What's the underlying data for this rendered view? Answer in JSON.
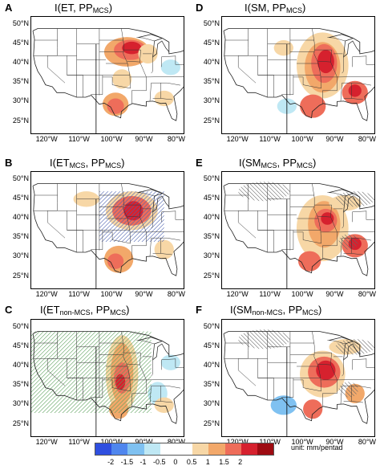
{
  "panels": [
    {
      "letter": "A",
      "title_main": "I(ET, PP",
      "title_sub": "MCS",
      "title_end": ")"
    },
    {
      "letter": "D",
      "title_main": "I(SM, PP",
      "title_sub": "MCS",
      "title_end": ")"
    },
    {
      "letter": "B",
      "title_main": "I(ET",
      "title_sub": "MCS",
      "title_mid": ", PP",
      "title_sub2": "MCS",
      "title_end": ")"
    },
    {
      "letter": "E",
      "title_main": "I(SM",
      "title_sub": "MCS",
      "title_mid": ", PP",
      "title_sub2": "MCS",
      "title_end": ")"
    },
    {
      "letter": "C",
      "title_main": "I(ET",
      "title_sub": "non-MCS",
      "title_mid": ", PP",
      "title_sub2": "MCS",
      "title_end": ")"
    },
    {
      "letter": "F",
      "title_main": "I(SM",
      "title_sub": "non-MCS",
      "title_mid": ", PP",
      "title_sub2": "MCS",
      "title_end": ")"
    }
  ],
  "lat_labels": [
    "50°N",
    "45°N",
    "40°N",
    "35°N",
    "30°N",
    "25°N"
  ],
  "lon_labels": [
    "120°W",
    "110°W",
    "100°W",
    "90°W",
    "80°W"
  ],
  "colorbar": {
    "ticks": [
      "-2",
      "-1.5",
      "-1",
      "-0.5",
      "0",
      "0.5",
      "1",
      "1.5",
      "2"
    ],
    "colors": [
      "#2f4fe0",
      "#4f86ee",
      "#7fc1f1",
      "#bfe8f4",
      "#ffffff",
      "#ffffff",
      "#f7d7a6",
      "#f2a86a",
      "#ee6d5a",
      "#d6212e",
      "#9e0b12"
    ],
    "unit": "unit: mm/pentad"
  },
  "maps": {
    "A": {
      "blobs": [
        {
          "lon": -95.5,
          "lat": 43,
          "r": [
            7,
            3.8
          ],
          "c": "#f2a86a"
        },
        {
          "lon": -94.5,
          "lat": 43.5,
          "r": [
            5,
            2.6
          ],
          "c": "#ee6d5a"
        },
        {
          "lon": -94,
          "lat": 44,
          "r": [
            3,
            1.6
          ],
          "c": "#d6212e"
        },
        {
          "lon": -89,
          "lat": 42.5,
          "r": [
            3,
            2.5
          ],
          "c": "#f7d7a6"
        },
        {
          "lon": -99,
          "lat": 29.5,
          "r": [
            4,
            3
          ],
          "c": "#f2a86a"
        },
        {
          "lon": -99,
          "lat": 29,
          "r": [
            2.6,
            2
          ],
          "c": "#ee6d5a"
        },
        {
          "lon": -84,
          "lat": 31,
          "r": [
            3,
            2
          ],
          "c": "#f7d7a6"
        },
        {
          "lon": -82,
          "lat": 39,
          "r": [
            3,
            2
          ],
          "c": "#bfe8f4"
        },
        {
          "lon": -97,
          "lat": 36,
          "r": [
            3,
            2.5
          ],
          "c": "#f7d7a6"
        }
      ]
    },
    "D": {
      "blobs": [
        {
          "lon": -94,
          "lat": 39.5,
          "r": [
            8,
            8.5
          ],
          "c": "#f7d7a6"
        },
        {
          "lon": -94,
          "lat": 39,
          "r": [
            5.5,
            6.5
          ],
          "c": "#f2a86a"
        },
        {
          "lon": -93.5,
          "lat": 40,
          "r": [
            4,
            5
          ],
          "c": "#ee6d5a"
        },
        {
          "lon": -93,
          "lat": 40.5,
          "r": [
            2.6,
            3
          ],
          "c": "#d6212e"
        },
        {
          "lon": -97,
          "lat": 29,
          "r": [
            4,
            3
          ],
          "c": "#ee6d5a"
        },
        {
          "lon": -84,
          "lat": 32.5,
          "r": [
            4,
            3
          ],
          "c": "#ee6d5a"
        },
        {
          "lon": -84,
          "lat": 33,
          "r": [
            2,
            1.6
          ],
          "c": "#d6212e"
        },
        {
          "lon": -105,
          "lat": 29,
          "r": [
            3,
            2
          ],
          "c": "#bfe8f4"
        },
        {
          "lon": -106,
          "lat": 44,
          "r": [
            3,
            2
          ],
          "c": "#f7d7a6"
        }
      ]
    },
    "B": {
      "blobs": [
        {
          "lon": -94,
          "lat": 42,
          "r": [
            8,
            5
          ],
          "c": "#f7d7a6"
        },
        {
          "lon": -94,
          "lat": 42,
          "r": [
            6,
            3.8
          ],
          "c": "#ee6d5a"
        },
        {
          "lon": -93.5,
          "lat": 42,
          "r": [
            3,
            2.5
          ],
          "c": "#d6212e"
        },
        {
          "lon": -98,
          "lat": 29.5,
          "r": [
            4.5,
            3.5
          ],
          "c": "#f2a86a"
        },
        {
          "lon": -99,
          "lat": 29,
          "r": [
            2.5,
            2
          ],
          "c": "#ee6d5a"
        },
        {
          "lon": -84,
          "lat": 32,
          "r": [
            3,
            2.5
          ],
          "c": "#f7d7a6"
        },
        {
          "lon": -108,
          "lat": 45,
          "r": [
            4,
            2
          ],
          "c": "#f7d7a6"
        }
      ]
    },
    "E": {
      "blobs": [
        {
          "lon": -94,
          "lat": 37.5,
          "r": [
            8,
            8.5
          ],
          "c": "#f7d7a6"
        },
        {
          "lon": -93.5,
          "lat": 38.5,
          "r": [
            5,
            6
          ],
          "c": "#f2a86a"
        },
        {
          "lon": -93,
          "lat": 39.5,
          "r": [
            3.5,
            3
          ],
          "c": "#ee6d5a"
        },
        {
          "lon": -92.5,
          "lat": 40,
          "r": [
            2,
            1.6
          ],
          "c": "#d6212e"
        },
        {
          "lon": -98,
          "lat": 29,
          "r": [
            3.5,
            2.6
          ],
          "c": "#ee6d5a"
        },
        {
          "lon": -84,
          "lat": 33,
          "r": [
            4,
            3
          ],
          "c": "#ee6d5a"
        },
        {
          "lon": -84,
          "lat": 33.5,
          "r": [
            2,
            1.6
          ],
          "c": "#d6212e"
        },
        {
          "lon": -87,
          "lat": 44,
          "r": [
            5,
            2
          ],
          "c": "#f7d7a6"
        }
      ]
    },
    "C": {
      "blobs": [
        {
          "lon": -97,
          "lat": 38,
          "r": [
            5,
            10
          ],
          "c": "#f7d7a6"
        },
        {
          "lon": -97,
          "lat": 38,
          "r": [
            3.5,
            8
          ],
          "c": "#f2a86a"
        },
        {
          "lon": -97,
          "lat": 37,
          "r": [
            2.5,
            4
          ],
          "c": "#ee6d5a"
        },
        {
          "lon": -97.5,
          "lat": 36,
          "r": [
            1.5,
            2
          ],
          "c": "#d6212e"
        },
        {
          "lon": -98,
          "lat": 29,
          "r": [
            3,
            2.5
          ],
          "c": "#f2a86a"
        },
        {
          "lon": -86,
          "lat": 33,
          "r": [
            3,
            3
          ],
          "c": "#bfe8f4"
        },
        {
          "lon": -82,
          "lat": 41,
          "r": [
            3,
            2
          ],
          "c": "#bfe8f4"
        },
        {
          "lon": -84,
          "lat": 30,
          "r": [
            3,
            2
          ],
          "c": "#f7d7a6"
        }
      ]
    },
    "F": {
      "blobs": [
        {
          "lon": -94,
          "lat": 38,
          "r": [
            7,
            6
          ],
          "c": "#f7d7a6"
        },
        {
          "lon": -93.5,
          "lat": 38.5,
          "r": [
            5,
            4
          ],
          "c": "#ee6d5a"
        },
        {
          "lon": -93,
          "lat": 39,
          "r": [
            3,
            2.5
          ],
          "c": "#d6212e"
        },
        {
          "lon": -97,
          "lat": 29,
          "r": [
            3,
            2.5
          ],
          "c": "#ee6d5a"
        },
        {
          "lon": -84,
          "lat": 33,
          "r": [
            3,
            2.5
          ],
          "c": "#f2a86a"
        },
        {
          "lon": -106,
          "lat": 30,
          "r": [
            4,
            2.5
          ],
          "c": "#7fc1f1"
        },
        {
          "lon": -87,
          "lat": 45,
          "r": [
            5,
            2
          ],
          "c": "#f7d7a6"
        }
      ]
    }
  }
}
